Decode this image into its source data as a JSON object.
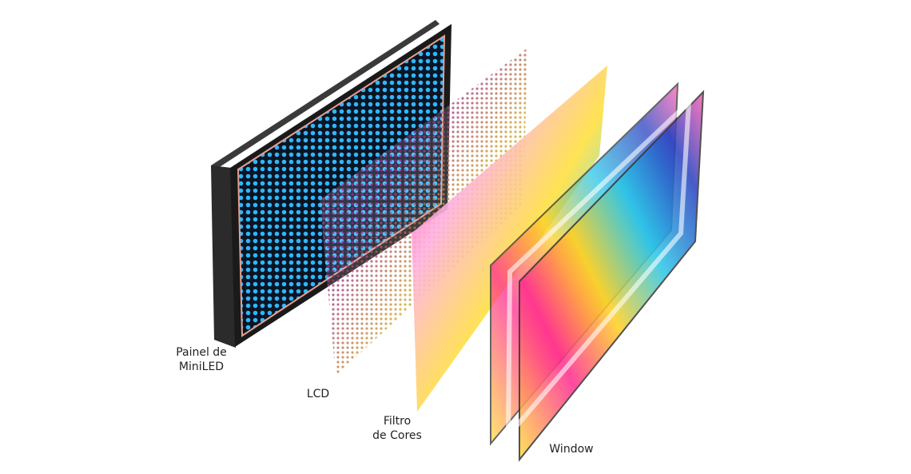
{
  "layers": [
    {
      "label_lines": [
        "Painel de",
        "MiniLED"
      ]
    },
    {
      "label_lines": [
        "LCD"
      ]
    },
    {
      "label_lines": [
        "Filtro",
        "de Cores"
      ]
    },
    {
      "label_lines": [
        "Window"
      ]
    }
  ]
}
